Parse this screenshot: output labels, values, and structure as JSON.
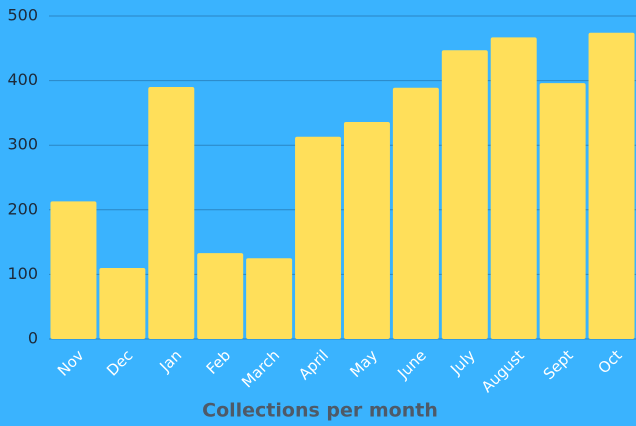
{
  "chart_data": {
    "type": "bar",
    "x_label": "Collections per month",
    "categories": [
      "Nov",
      "Dec",
      "Jan",
      "Feb",
      "March",
      "April",
      "May",
      "June",
      "July",
      "August",
      "Sept",
      "Oct"
    ],
    "values": [
      213,
      110,
      390,
      133,
      125,
      313,
      336,
      389,
      447,
      467,
      396,
      474
    ],
    "color": "#ffdf5a",
    "ylim": [
      0,
      500
    ],
    "yticks": [
      0,
      100,
      200,
      300,
      400,
      500
    ],
    "grid": true
  }
}
